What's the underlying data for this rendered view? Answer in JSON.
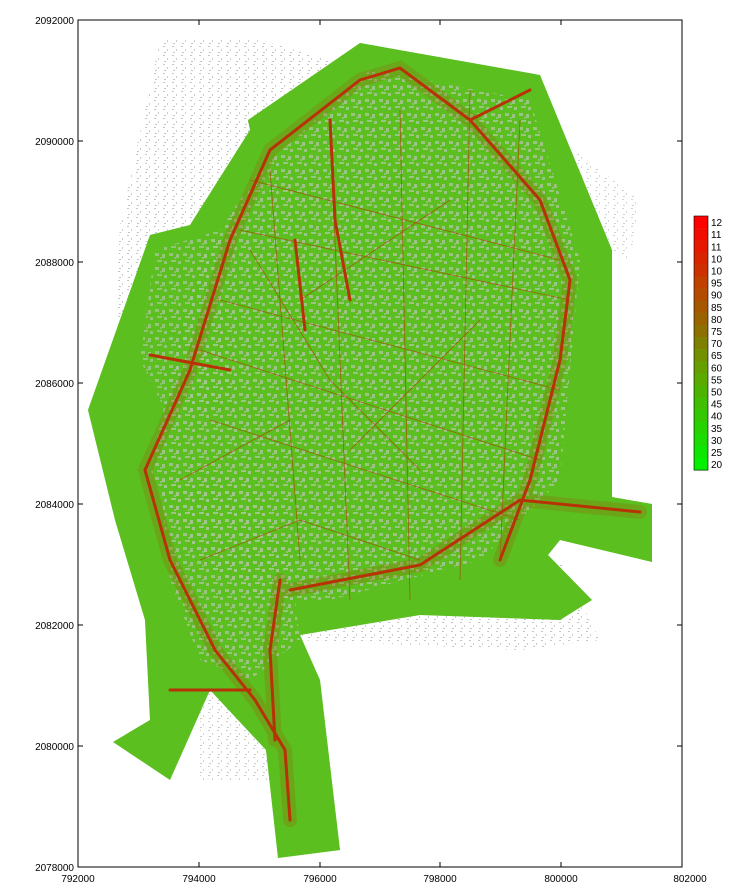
{
  "map": {
    "x_axis": {
      "tick_labels": [
        "792000",
        "794000",
        "796000",
        "798000",
        "800000",
        "802000"
      ],
      "range": [
        792000,
        802000
      ]
    },
    "y_axis": {
      "tick_labels": [
        "2078000",
        "2080000",
        "2082000",
        "2084000",
        "2086000",
        "2088000",
        "2090000",
        "2092000"
      ],
      "range": [
        2078000,
        2092000
      ]
    },
    "legend": {
      "placement": "right",
      "labels": [
        "12",
        "11",
        "11",
        "10",
        "10",
        "95",
        "90",
        "85",
        "80",
        "75",
        "70",
        "65",
        "60",
        "55",
        "50",
        "45",
        "40",
        "35",
        "30",
        "25",
        "20"
      ],
      "colors": [
        "#ff0000",
        "#f20c00",
        "#e61800",
        "#d92400",
        "#cc3000",
        "#c04000",
        "#b34c00",
        "#a65800",
        "#996400",
        "#8c7000",
        "#808000",
        "#739000",
        "#66a000",
        "#5aaa00",
        "#4cb400",
        "#40be00",
        "#33c800",
        "#26d200",
        "#1adc00",
        "#0ce600",
        "#00f000"
      ]
    },
    "colors": {
      "base_fill": "#5bbf1f",
      "building_fill": "#c8c8c8",
      "road_stroke": "#b0410a",
      "major_road_stroke": "#b83208",
      "frame": "#000000"
    }
  }
}
